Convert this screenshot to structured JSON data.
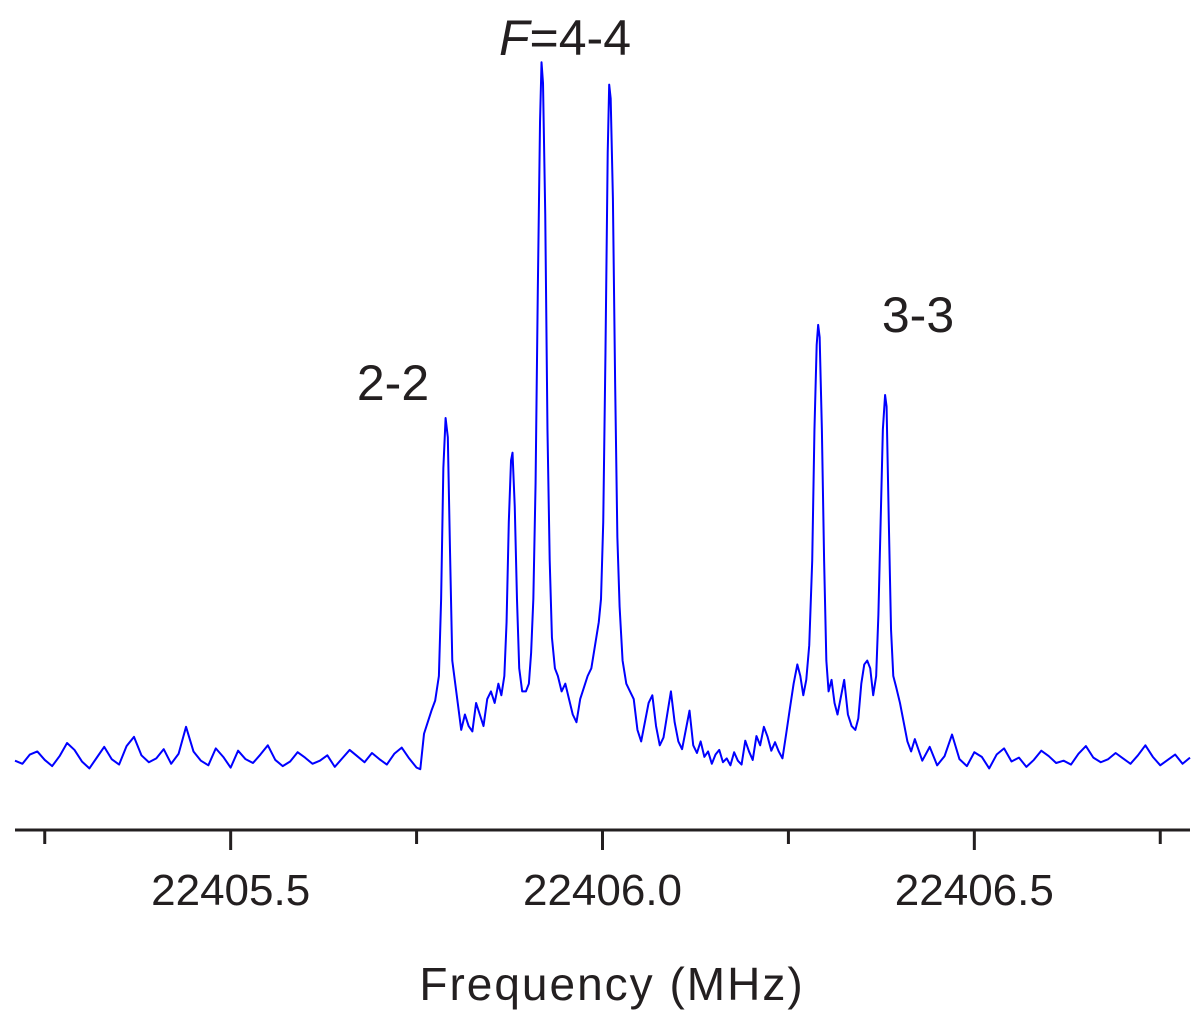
{
  "chart_data": {
    "type": "line",
    "xlabel": "Frequency (MHz)",
    "color": "#0000ff",
    "xlim": [
      22405.21,
      22406.79
    ],
    "ylim": [
      0,
      100
    ],
    "xticks": [
      {
        "value": 22405.5,
        "label": "22405.5"
      },
      {
        "value": 22406,
        "label": "22406.0"
      },
      {
        "value": 22406.5,
        "label": "22406.5"
      }
    ],
    "xminor_ticks": [
      22405.25,
      22405.75,
      22406.25,
      22406.75
    ],
    "annotations": [
      {
        "text": "F=4-4"
      },
      {
        "text": "2-2"
      },
      {
        "text": "3-3"
      }
    ],
    "x": [
      22405.21,
      22405.22,
      22405.23,
      22405.24,
      22405.25,
      22405.26,
      22405.27,
      22405.28,
      22405.29,
      22405.3,
      22405.31,
      22405.32,
      22405.33,
      22405.34,
      22405.35,
      22405.36,
      22405.37,
      22405.38,
      22405.39,
      22405.4,
      22405.41,
      22405.42,
      22405.43,
      22405.44,
      22405.45,
      22405.46,
      22405.47,
      22405.48,
      22405.49,
      22405.5,
      22405.51,
      22405.52,
      22405.53,
      22405.54,
      22405.55,
      22405.56,
      22405.57,
      22405.58,
      22405.59,
      22405.6,
      22405.61,
      22405.62,
      22405.63,
      22405.64,
      22405.65,
      22405.66,
      22405.67,
      22405.68,
      22405.69,
      22405.7,
      22405.71,
      22405.72,
      22405.73,
      22405.74,
      22405.75,
      22405.755,
      22405.76,
      22405.765,
      22405.77,
      22405.775,
      22405.78,
      22405.783,
      22405.786,
      22405.789,
      22405.792,
      22405.795,
      22405.798,
      22405.802,
      22405.806,
      22405.81,
      22405.815,
      22405.82,
      22405.825,
      22405.83,
      22405.835,
      22405.84,
      22405.845,
      22405.85,
      22405.855,
      22405.86,
      22405.864,
      22405.868,
      22405.871,
      22405.874,
      22405.877,
      22405.879,
      22405.882,
      22405.885,
      22405.888,
      22405.892,
      22405.897,
      22405.901,
      22405.904,
      22405.907,
      22405.91,
      22405.913,
      22405.916,
      22405.918,
      22405.92,
      22405.923,
      22405.926,
      22405.929,
      22405.932,
      22405.936,
      22405.94,
      22405.945,
      22405.95,
      22405.955,
      22405.96,
      22405.965,
      22405.97,
      22405.975,
      22405.98,
      22405.985,
      22405.99,
      22405.995,
      22405.998,
      22406.001,
      22406.004,
      22406.007,
      22406.009,
      22406.011,
      22406.014,
      22406.017,
      22406.02,
      22406.023,
      22406.027,
      22406.032,
      22406.037,
      22406.042,
      22406.047,
      22406.052,
      22406.057,
      22406.062,
      22406.067,
      22406.072,
      22406.077,
      22406.082,
      22406.087,
      22406.092,
      22406.097,
      22406.102,
      22406.107,
      22406.112,
      22406.117,
      22406.122,
      22406.127,
      22406.132,
      22406.137,
      22406.142,
      22406.147,
      22406.152,
      22406.157,
      22406.162,
      22406.167,
      22406.172,
      22406.177,
      22406.182,
      22406.187,
      22406.192,
      22406.197,
      22406.202,
      22406.207,
      22406.212,
      22406.217,
      22406.222,
      22406.227,
      22406.232,
      22406.237,
      22406.242,
      22406.247,
      22406.252,
      22406.257,
      22406.262,
      22406.266,
      22406.27,
      22406.274,
      22406.278,
      22406.282,
      22406.285,
      22406.288,
      22406.29,
      22406.292,
      22406.295,
      22406.298,
      22406.301,
      22406.304,
      22406.308,
      22406.312,
      22406.316,
      22406.32,
      22406.325,
      22406.33,
      22406.335,
      22406.34,
      22406.344,
      22406.348,
      22406.352,
      22406.356,
      22406.36,
      22406.364,
      22406.368,
      22406.371,
      22406.374,
      22406.377,
      22406.38,
      22406.382,
      22406.385,
      22406.388,
      22406.391,
      22406.395,
      22406.4,
      22406.405,
      22406.41,
      22406.415,
      22406.42,
      22406.43,
      22406.44,
      22406.45,
      22406.46,
      22406.47,
      22406.48,
      22406.49,
      22406.5,
      22406.51,
      22406.52,
      22406.53,
      22406.54,
      22406.55,
      22406.56,
      22406.57,
      22406.58,
      22406.59,
      22406.6,
      22406.61,
      22406.62,
      22406.63,
      22406.64,
      22406.65,
      22406.66,
      22406.67,
      22406.68,
      22406.69,
      22406.7,
      22406.71,
      22406.72,
      22406.73,
      22406.74,
      22406.75,
      22406.76,
      22406.77,
      22406.78,
      22406.79
    ],
    "values": [
      9.0,
      8.6,
      9.8,
      10.2,
      9.1,
      8.3,
      9.6,
      11.3,
      10.4,
      8.9,
      8.0,
      9.4,
      10.8,
      9.2,
      8.5,
      10.9,
      12.1,
      9.7,
      8.8,
      9.3,
      10.5,
      8.6,
      9.9,
      13.4,
      10.2,
      9.0,
      8.4,
      10.6,
      9.5,
      8.1,
      10.3,
      9.2,
      8.7,
      9.8,
      11.0,
      9.1,
      8.3,
      8.9,
      10.1,
      9.4,
      8.6,
      9.0,
      9.7,
      8.2,
      9.3,
      10.4,
      9.6,
      8.8,
      10.0,
      9.2,
      8.5,
      9.9,
      10.7,
      9.3,
      8.1,
      7.9,
      12.5,
      14.0,
      15.5,
      16.8,
      20.0,
      30,
      47,
      53.5,
      51,
      36,
      22,
      19,
      16,
      13,
      15,
      13.5,
      12.8,
      16.5,
      15,
      13.5,
      17,
      18,
      16.5,
      19,
      17.5,
      20,
      27,
      40,
      48,
      49,
      42,
      30,
      21,
      18,
      18,
      19,
      23,
      30,
      45,
      70,
      92,
      99.7,
      97,
      80,
      52,
      35,
      25,
      21,
      20,
      18,
      19,
      17,
      15,
      14,
      17,
      18.5,
      20,
      21,
      24,
      27,
      30,
      40,
      62,
      88,
      96.8,
      95,
      82,
      58,
      38,
      29,
      22,
      19,
      18,
      17,
      13,
      11.5,
      14,
      16.5,
      17.5,
      13.5,
      11,
      12,
      15,
      18,
      14,
      11.5,
      10.5,
      13,
      15.5,
      11,
      10,
      11.5,
      9.5,
      10.2,
      8.6,
      9.8,
      10.4,
      8.8,
      9.3,
      8.4,
      10.1,
      9.0,
      8.5,
      11.6,
      10.2,
      9.1,
      12.2,
      11.0,
      13.4,
      12.1,
      10.3,
      11.4,
      10.2,
      9.3,
      12.5,
      15.8,
      19.0,
      21.5,
      20.0,
      17.5,
      19.5,
      24,
      35,
      52,
      63,
      65.6,
      64,
      52,
      35,
      22,
      18,
      19.5,
      16.5,
      15,
      17,
      19.5,
      15,
      13.5,
      13,
      14.5,
      19,
      21.5,
      22,
      21,
      17.5,
      20,
      28,
      40,
      52,
      56.5,
      55,
      40,
      26,
      20,
      18.5,
      16.5,
      14,
      11.5,
      10.2,
      11.8,
      9.0,
      10.8,
      8.4,
      9.6,
      12.4,
      9.2,
      8.3,
      10.1,
      9.5,
      8.0,
      9.8,
      10.6,
      8.9,
      9.4,
      8.2,
      9.1,
      10.3,
      9.6,
      8.7,
      9.0,
      8.5,
      9.9,
      10.9,
      9.4,
      8.8,
      9.2,
      10.0,
      9.3,
      8.6,
      9.7,
      11.0,
      9.5,
      8.4,
      9.1,
      9.8,
      8.6,
      9.4
    ]
  }
}
